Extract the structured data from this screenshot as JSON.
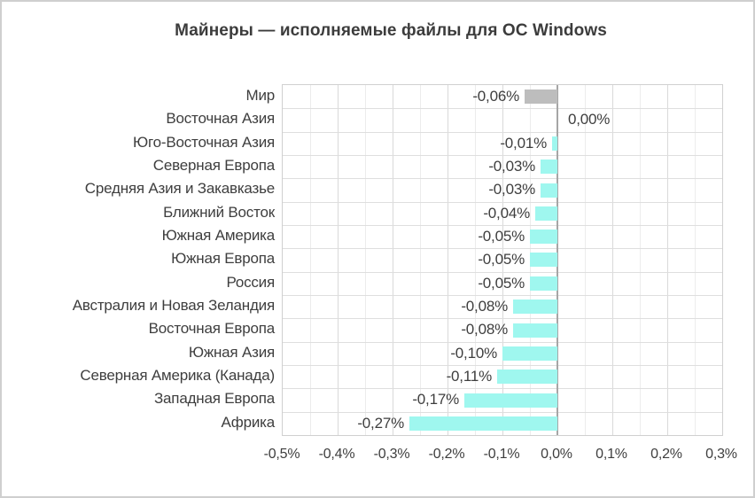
{
  "chart_data": {
    "type": "bar",
    "orientation": "horizontal",
    "title": "Майнеры — исполняемые файлы для ОС Windows",
    "categories": [
      "Мир",
      "Восточная Азия",
      "Юго-Восточная Азия",
      "Северная Европа",
      "Средняя Азия и Закавказье",
      "Ближний Восток",
      "Южная Америка",
      "Южная Европа",
      "Россия",
      "Австралия и Новая Зеландия",
      "Восточная Европа",
      "Южная Азия",
      "Северная Америка (Канада)",
      "Западная Европа",
      "Африка"
    ],
    "values": [
      -0.06,
      0.0,
      -0.01,
      -0.03,
      -0.03,
      -0.04,
      -0.05,
      -0.05,
      -0.05,
      -0.08,
      -0.08,
      -0.1,
      -0.11,
      -0.17,
      -0.27
    ],
    "value_labels": [
      "-0,06%",
      "0,00%",
      "-0,01%",
      "-0,03%",
      "-0,03%",
      "-0,04%",
      "-0,05%",
      "-0,05%",
      "-0,05%",
      "-0,08%",
      "-0,08%",
      "-0,10%",
      "-0,11%",
      "-0,17%",
      "-0,27%"
    ],
    "xlabel": "",
    "ylabel": "",
    "xlim": [
      -0.5,
      0.3
    ],
    "xtick_values": [
      -0.5,
      -0.4,
      -0.3,
      -0.2,
      -0.1,
      0.0,
      0.1,
      0.2,
      0.3
    ],
    "xtick_labels": [
      "-0,5%",
      "-0,4%",
      "-0,3%",
      "-0,2%",
      "-0,1%",
      "0,0%",
      "0,1%",
      "0,2%",
      "0,3%"
    ],
    "grid": "major and minor vertical gridlines, horizontal row gridlines",
    "legend_position": "none",
    "colors": {
      "bar_default": "#9ff7ef",
      "bar_world": "#bdbdbd",
      "zero_axis": "#a6a6a6",
      "gridline_major": "#d9d9d9",
      "gridline_minor": "#ececec",
      "gridline_row": "#dedede",
      "text": "#3e3e3e"
    }
  }
}
